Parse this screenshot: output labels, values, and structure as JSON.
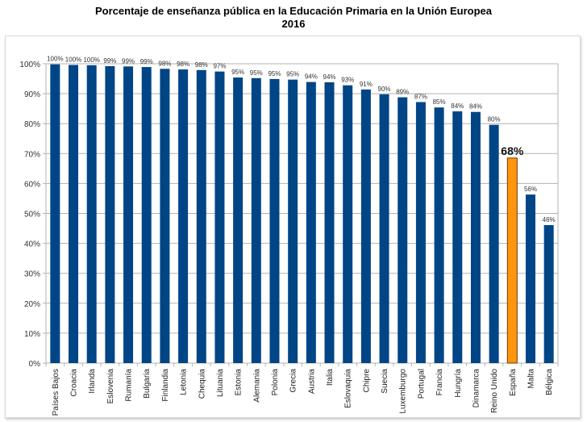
{
  "chart_data": {
    "type": "bar",
    "title": "Porcentaje de enseñanza pública en la Educación Primaria en la Unión Europea",
    "subtitle": "2016",
    "xlabel": "",
    "ylabel": "",
    "ylim": [
      0,
      100
    ],
    "yticks": [
      "0%",
      "10%",
      "20%",
      "30%",
      "40%",
      "50%",
      "60%",
      "70%",
      "80%",
      "90%",
      "100%"
    ],
    "grid": true,
    "legend": "none",
    "categories": [
      "Países Bajos",
      "Croacia",
      "Irlanda",
      "Eslovenia",
      "Rumanía",
      "Bulgaria",
      "Finlandia",
      "Letonia",
      "Chequia",
      "Lituania",
      "Estonia",
      "Alemania",
      "Polonia",
      "Grecia",
      "Austria",
      "Italia",
      "Eslovaquia",
      "Chipre",
      "Suecia",
      "Luxemburgo",
      "Portugal",
      "Francia",
      "Hungría",
      "Dinamarca",
      "Reino Unido",
      "España",
      "Malta",
      "Bélgica"
    ],
    "values": [
      99.8,
      99.6,
      99.5,
      99.2,
      99.1,
      98.9,
      98.3,
      98.1,
      97.9,
      97.4,
      95.4,
      95.2,
      94.9,
      94.7,
      93.9,
      93.8,
      92.8,
      91.4,
      89.8,
      88.8,
      87.2,
      85.4,
      84.1,
      83.9,
      79.6,
      68.5,
      56.3,
      46.1
    ],
    "labels": [
      "100%",
      "100%",
      "100%",
      "99%",
      "99%",
      "99%",
      "98%",
      "98%",
      "98%",
      "97%",
      "95%",
      "95%",
      "95%",
      "95%",
      "94%",
      "94%",
      "93%",
      "91%",
      "90%",
      "89%",
      "87%",
      "85%",
      "84%",
      "84%",
      "80%",
      "68%",
      "56%",
      "46%"
    ],
    "highlight": "España",
    "colors": {
      "bar": "#004586",
      "highlight": "#ff950e",
      "highlight_border": "#6b3a00",
      "grid": "#b3b3b3"
    }
  }
}
